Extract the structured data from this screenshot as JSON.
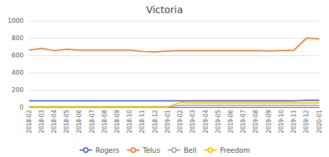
{
  "chart_data": {
    "type": "line",
    "title": "Victoria",
    "categories": [
      "2018-02",
      "2018-03",
      "2018-04",
      "2018-05",
      "2018-06",
      "2018-07",
      "2018-08",
      "2018-09",
      "2018-10",
      "2018-11",
      "2018-12",
      "2019-01",
      "2019-02",
      "2019-03",
      "2019-04",
      "2019-05",
      "2019-06",
      "2019-07",
      "2019-08",
      "2019-09",
      "2019-10",
      "2019-11",
      "2019-12",
      "2020-01"
    ],
    "series": [
      {
        "name": "Rogers",
        "color": "#4472c4",
        "values": [
          75,
          75,
          75,
          75,
          75,
          75,
          75,
          75,
          75,
          75,
          75,
          75,
          75,
          75,
          75,
          75,
          75,
          75,
          75,
          75,
          75,
          75,
          80,
          80
        ]
      },
      {
        "name": "Telus",
        "color": "#ed7d31",
        "values": [
          660,
          680,
          655,
          670,
          660,
          660,
          660,
          660,
          660,
          645,
          640,
          650,
          655,
          655,
          655,
          655,
          655,
          655,
          655,
          650,
          655,
          660,
          800,
          790
        ]
      },
      {
        "name": "Bell",
        "color": "#a5a5a5",
        "values": [
          5,
          5,
          5,
          5,
          5,
          5,
          5,
          5,
          5,
          5,
          5,
          5,
          20,
          20,
          20,
          20,
          20,
          20,
          20,
          20,
          20,
          20,
          20,
          20
        ]
      },
      {
        "name": "Freedom",
        "color": "#ffc000",
        "values": [
          5,
          5,
          5,
          5,
          5,
          5,
          5,
          5,
          5,
          5,
          5,
          5,
          55,
          50,
          50,
          50,
          50,
          50,
          50,
          50,
          50,
          50,
          50,
          50
        ]
      }
    ],
    "ylim": [
      0,
      1000
    ],
    "yticks": [
      0,
      200,
      400,
      600,
      800,
      1000
    ],
    "grid": true,
    "legend": "bottom"
  }
}
